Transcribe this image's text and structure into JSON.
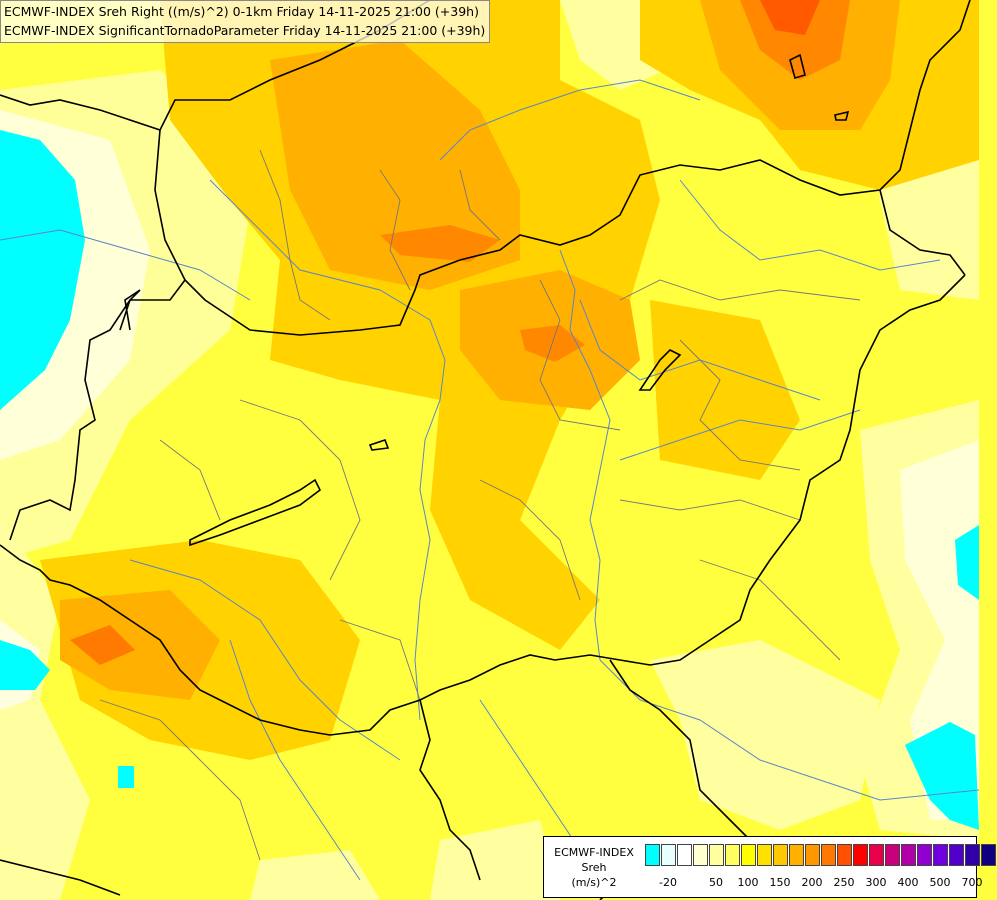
{
  "titles": {
    "line1": "ECMWF-INDEX Sreh Right ((m/s)^2) 0-1km Friday 14-11-2025 21:00 (+39h)",
    "line2": "ECMWF-INDEX SignificantTornadoParameter Friday 14-11-2025 21:00 (+39h)"
  },
  "legend": {
    "model": "ECMWF-INDEX",
    "param": "Sreh",
    "unit": "(m/s)^2",
    "colors": [
      "#00ffff",
      "#e8ffff",
      "#ffffff",
      "#ffffd0",
      "#ffffa0",
      "#ffff60",
      "#ffff00",
      "#ffe000",
      "#ffc800",
      "#ffb000",
      "#ff9800",
      "#ff7800",
      "#ff5000",
      "#ff0000",
      "#e8004c",
      "#c8007c",
      "#b000a8",
      "#9000d0",
      "#7000e0",
      "#5000c8",
      "#3000a8",
      "#100080"
    ],
    "ticks": [
      "-20",
      "50",
      "100",
      "150",
      "200",
      "250",
      "300",
      "400",
      "500",
      "700"
    ]
  },
  "colors": {
    "background_yellow": "#ffff40",
    "light_yellow": "#ffffa0",
    "pale": "#ffffd8",
    "gold": "#ffd200",
    "orange": "#ffb000",
    "deep_orange": "#ff8800",
    "red_orange": "#ff5a00",
    "cyan": "#00ffff",
    "border": "#000000",
    "river": "#5a86c8"
  }
}
